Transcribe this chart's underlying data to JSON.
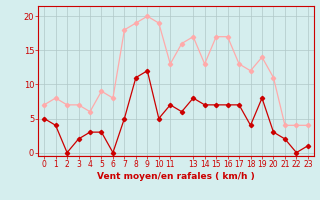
{
  "x_positions": [
    0,
    1,
    2,
    3,
    4,
    5,
    6,
    7,
    8,
    9,
    10,
    11,
    12,
    13,
    14,
    15,
    16,
    17,
    18,
    19,
    20,
    21,
    22,
    23
  ],
  "mean_wind": [
    5,
    4,
    0,
    2,
    3,
    3,
    0,
    5,
    11,
    12,
    5,
    7,
    6,
    8,
    7,
    7,
    7,
    7,
    4,
    8,
    3,
    2,
    0,
    1
  ],
  "gust_wind": [
    7,
    8,
    7,
    7,
    6,
    9,
    8,
    18,
    19,
    20,
    19,
    13,
    16,
    17,
    13,
    17,
    17,
    13,
    12,
    14,
    11,
    4,
    4,
    4
  ],
  "mean_color": "#cc0000",
  "gust_color": "#ffaaaa",
  "background_color": "#d5eeee",
  "grid_color": "#b0c8c8",
  "ylabel_vals": [
    0,
    5,
    10,
    15,
    20
  ],
  "ylim": [
    -0.5,
    21.5
  ],
  "xlim": [
    -0.5,
    23.5
  ],
  "xlabel": "Vent moyen/en rafales ( km/h )",
  "x_tick_positions": [
    0,
    1,
    2,
    3,
    4,
    5,
    6,
    7,
    8,
    9,
    10,
    11,
    13,
    14,
    15,
    16,
    17,
    18,
    19,
    20,
    21,
    22,
    23
  ],
  "x_tick_labels": [
    "0",
    "1",
    "2",
    "3",
    "4",
    "5",
    "6",
    "7",
    "8",
    "9",
    "10",
    "11",
    "13",
    "14",
    "15",
    "16",
    "17",
    "18",
    "19",
    "20",
    "21",
    "22",
    "23"
  ],
  "axis_color": "#cc0000",
  "tick_fontsize": 5.5,
  "xlabel_fontsize": 6.5,
  "ylabel_fontsize": 6,
  "linewidth": 0.9,
  "markersize": 2.2
}
